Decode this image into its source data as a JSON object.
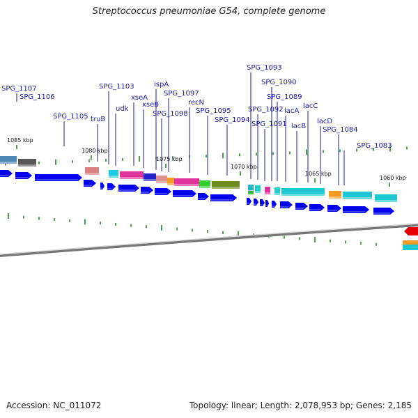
{
  "title": "Streptococcus pneumoniae G54, complete genome",
  "footer": {
    "accession": "Accession: NC_011072",
    "summary": "Topology: linear; Length: 2,078,953 bp; Genes: 2,185"
  },
  "colors": {
    "gene_arrow": "#0000ee",
    "label_text": "#1a1aa8",
    "leader_line": "#1a1aa8",
    "tick": "#1f8a1f",
    "backbone": "#777777"
  },
  "kbp_markers": [
    "1085 kbp",
    "1080 kbp",
    "1075 kbp",
    "1070 kbp",
    "1065 kbp",
    "1060 kbp"
  ],
  "gene_labels": [
    "SPG_1107",
    "SPG_1106",
    "SPG_1105",
    "truB",
    "SPG_1103",
    "udk",
    "xseA",
    "xseB",
    "ispA",
    "SPG_1097",
    "SPG_1098",
    "recN",
    "SPG_1095",
    "SPG_1094",
    "SPG_1093",
    "SPG_1092",
    "SPG_1091",
    "SPG_1090",
    "SPG_1089",
    "lacA",
    "lacB",
    "lacC",
    "lacD",
    "SPG_1084",
    "SPG_1083"
  ]
}
